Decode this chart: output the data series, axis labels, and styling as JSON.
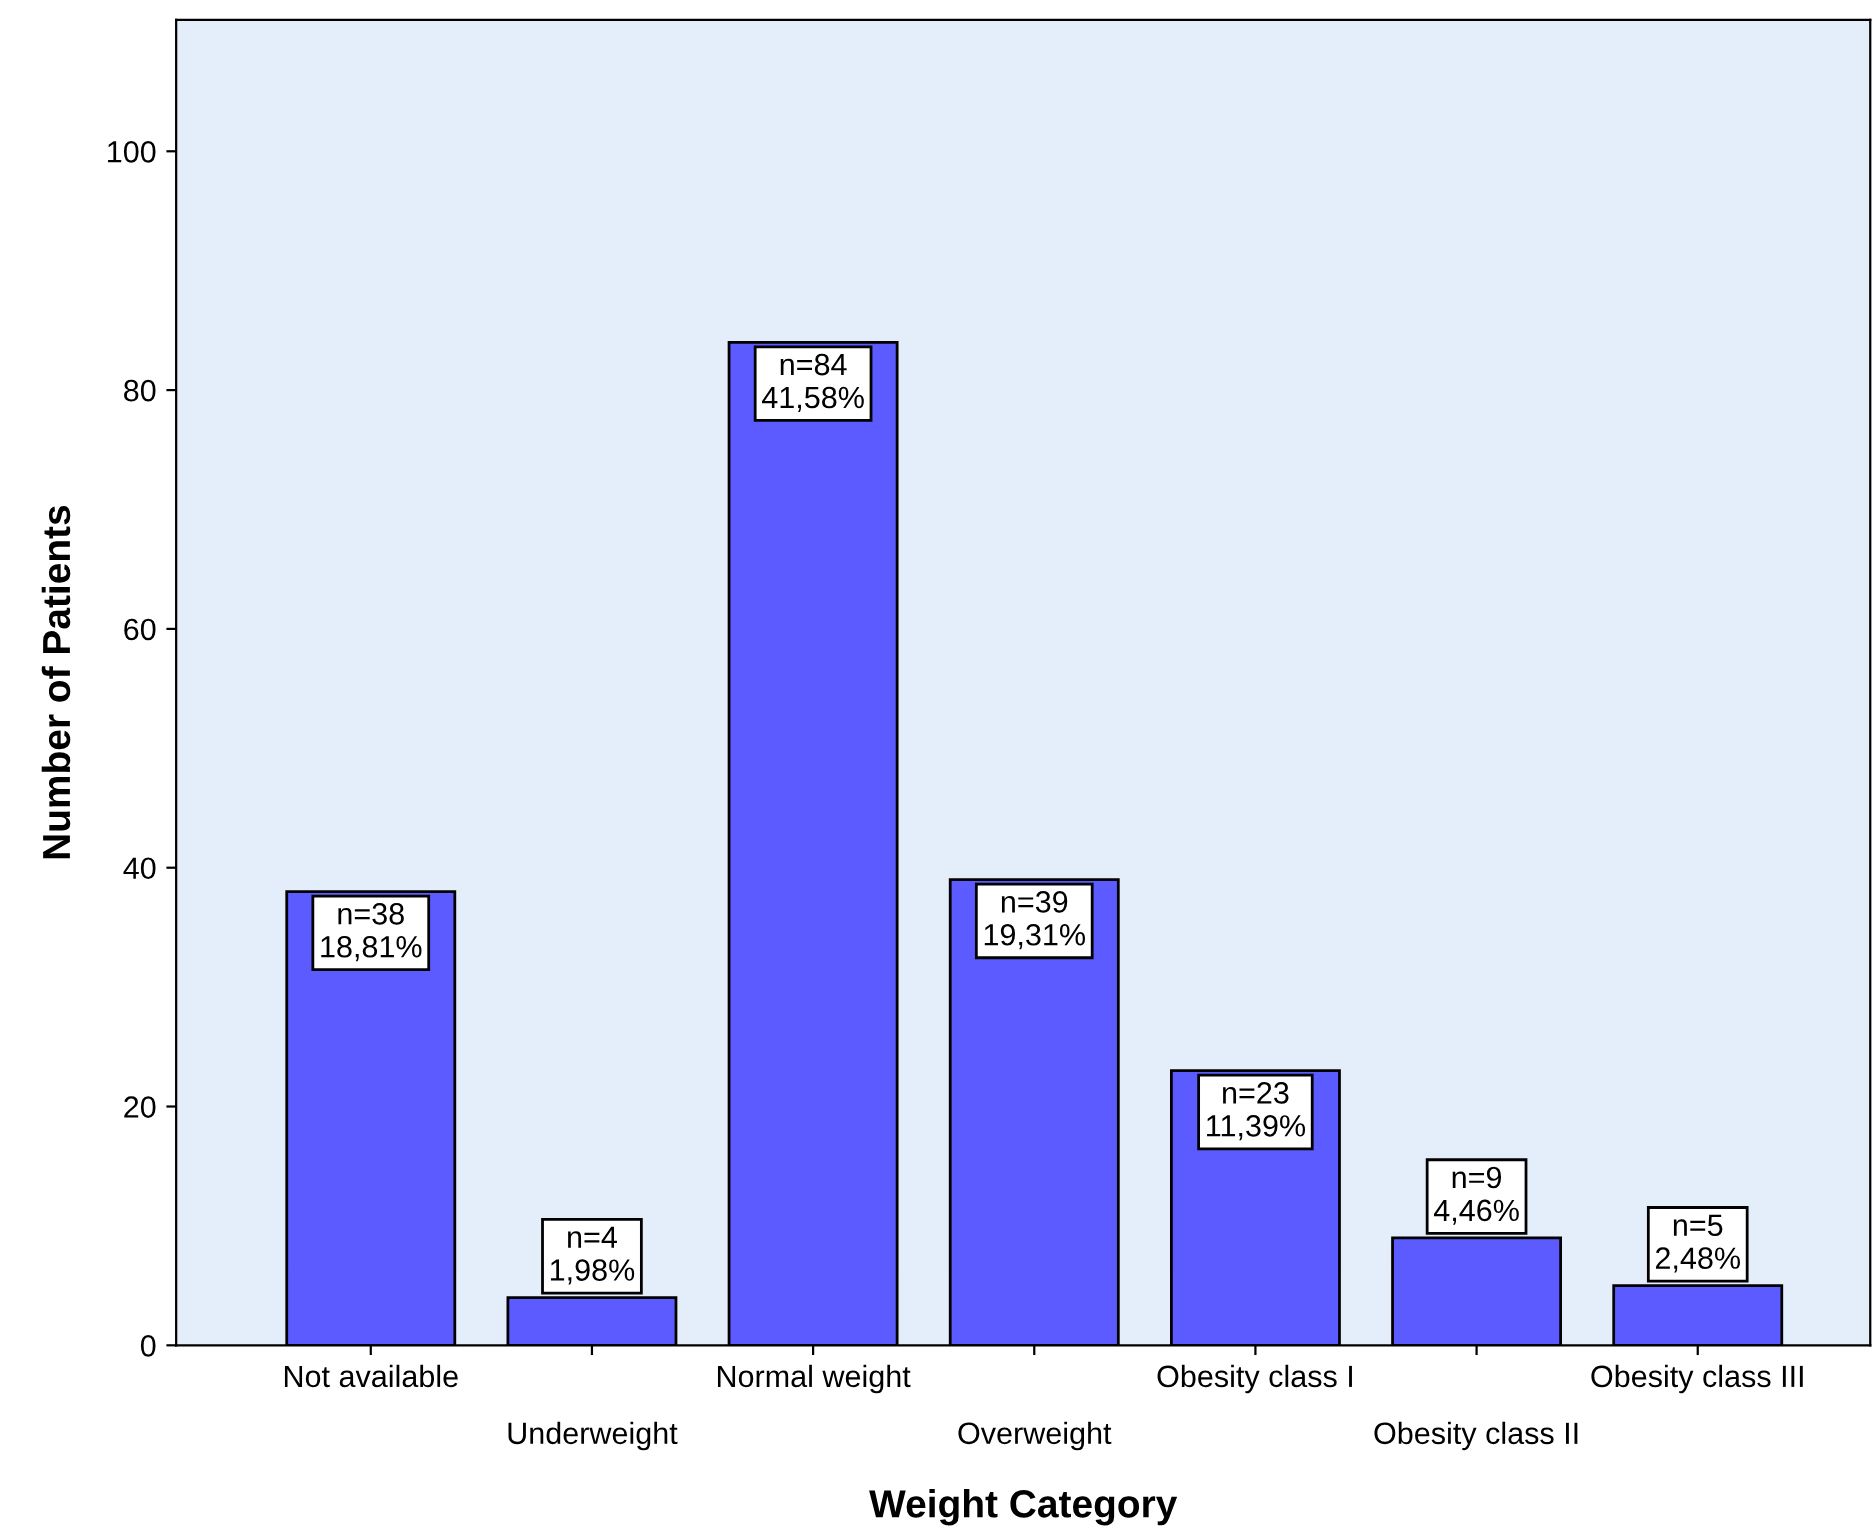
{
  "chart_data": {
    "type": "bar",
    "xlabel": "Weight Category",
    "ylabel": "Number of Patients",
    "categories": [
      "Not available",
      "Underweight",
      "Normal weight",
      "Overweight",
      "Obesity class I",
      "Obesity class II",
      "Obesity class III"
    ],
    "values": [
      38,
      4,
      84,
      39,
      23,
      9,
      5
    ],
    "value_labels": [
      "n=38\n18,81%",
      "n=4\n1,98%",
      "n=84\n41,58%",
      "n=39\n19,31%",
      "n=23\n11,39%",
      "n=9\n4,46%",
      "n=5\n2,48%"
    ],
    "color": "#5b5bff",
    "ylim": [
      0,
      111
    ],
    "yticks": [
      0,
      20,
      40,
      60,
      80,
      100
    ],
    "grid": false
  }
}
